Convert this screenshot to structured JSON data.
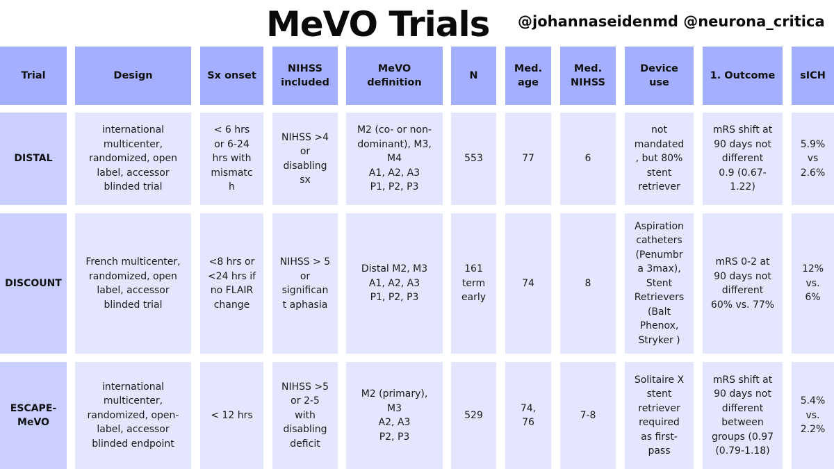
{
  "title": "MeVO Trials",
  "handles": "@johannaseidenmd @neurona_critica",
  "colors": {
    "header_bg": "#a4b0ff",
    "trial_cell_bg": "#c9d0ff",
    "body_cell_bg": "#e3e6fd",
    "text": "#1a1a1a"
  },
  "headers": [
    "Trial",
    "Design",
    "Sx onset",
    "NIHSS\nincluded",
    "MeVO\ndefinition",
    "N",
    "Med.\nage",
    "Med.\nNIHSS",
    "Device\nuse",
    "1. Outcome",
    "sICH"
  ],
  "rows": [
    {
      "trial": "DISTAL",
      "design": "international\nmulticenter,\nrandomized, open\nlabel, accessor\nblinded trial",
      "sx_onset": "< 6 hrs\nor 6-24\nhrs with\nmismatc\nh",
      "nihss": "NIHSS >4\nor\ndisabling\nsx",
      "mevo": "M2 (co- or non-\ndominant), M3,\nM4\nA1, A2, A3\nP1, P2, P3",
      "n": "553",
      "age": "77",
      "med_nihss": "6",
      "device": "not\nmandated\n, but 80%\nstent\nretriever",
      "outcome": "mRS shift at\n90 days not\ndifferent\n0.9 (0.67-\n1.22)",
      "sich": "5.9%\nvs\n2.6%"
    },
    {
      "trial": "DISCOUNT",
      "design": "French multicenter,\nrandomized, open\nlabel, accessor\nblinded trial",
      "sx_onset": "<8 hrs or\n<24 hrs if\nno FLAIR\nchange",
      "nihss": "NIHSS > 5\nor\nsignifican\nt aphasia",
      "mevo": "Distal M2, M3\nA1, A2, A3\nP1, P2, P3",
      "n": "161\nterm\nearly",
      "age": "74",
      "med_nihss": "8",
      "device": "Aspiration\ncatheters\n(Penumbr\na 3max),\nStent\nRetrievers\n(Balt\nPhenox,\nStryker )",
      "outcome": "mRS 0-2 at\n90 days not\ndifferent\n60% vs. 77%",
      "sich": "12%\nvs.\n6%"
    },
    {
      "trial": "ESCAPE-\nMeVO",
      "design": "international\nmulticenter,\nrandomized, open-\nlabel, accessor\nblinded endpoint",
      "sx_onset": "< 12 hrs",
      "nihss": "NIHSS >5\nor 2-5\nwith\ndisabling\ndeficit",
      "mevo": "M2 (primary),\nM3\nA2, A3\nP2, P3",
      "n": "529",
      "age": "74,\n76",
      "med_nihss": "7-8",
      "device": "Solitaire X\nstent\nretriever\nrequired\nas first-\npass",
      "outcome": "mRS shift at\n90 days not\ndifferent\nbetween\ngroups (0.97\n(0.79-1.18)",
      "sich": "5.4%\nvs.\n2.2%"
    }
  ]
}
